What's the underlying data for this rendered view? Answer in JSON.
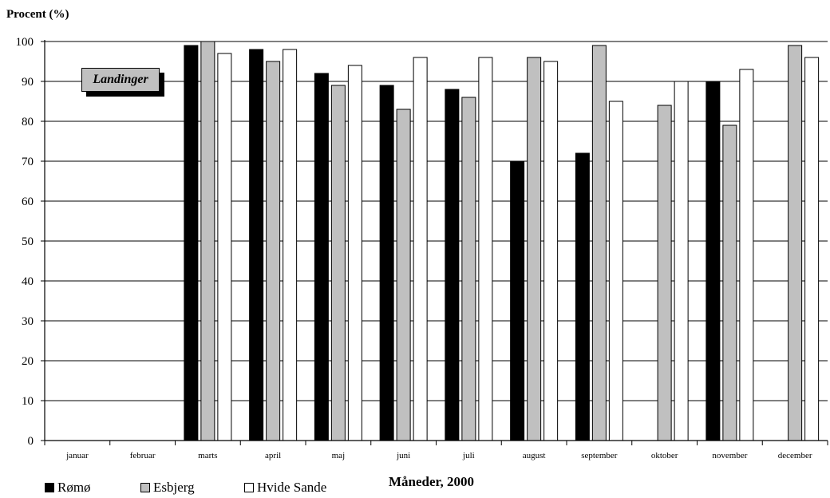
{
  "chart_data": {
    "type": "bar",
    "ylabel": "Procent (%)",
    "xlabel": "Måneder, 2000",
    "annotation": "Landinger",
    "ylim": [
      0,
      100
    ],
    "yticks": [
      0,
      10,
      20,
      30,
      40,
      50,
      60,
      70,
      80,
      90,
      100
    ],
    "grid": true,
    "legend_position": "bottom-left",
    "categories": [
      "januar",
      "februar",
      "marts",
      "april",
      "maj",
      "juni",
      "juli",
      "august",
      "september",
      "oktober",
      "november",
      "december"
    ],
    "series": [
      {
        "name": "Rømø",
        "color": "#000000",
        "values": [
          null,
          null,
          99,
          98,
          92,
          89,
          88,
          70,
          72,
          null,
          90,
          null
        ]
      },
      {
        "name": "Esbjerg",
        "color": "#c0c0c0",
        "values": [
          null,
          null,
          100,
          95,
          89,
          83,
          86,
          96,
          99,
          84,
          79,
          99
        ]
      },
      {
        "name": "Hvide Sande",
        "color": "#ffffff",
        "values": [
          null,
          null,
          97,
          98,
          94,
          96,
          96,
          95,
          85,
          90,
          93,
          96
        ]
      }
    ]
  }
}
